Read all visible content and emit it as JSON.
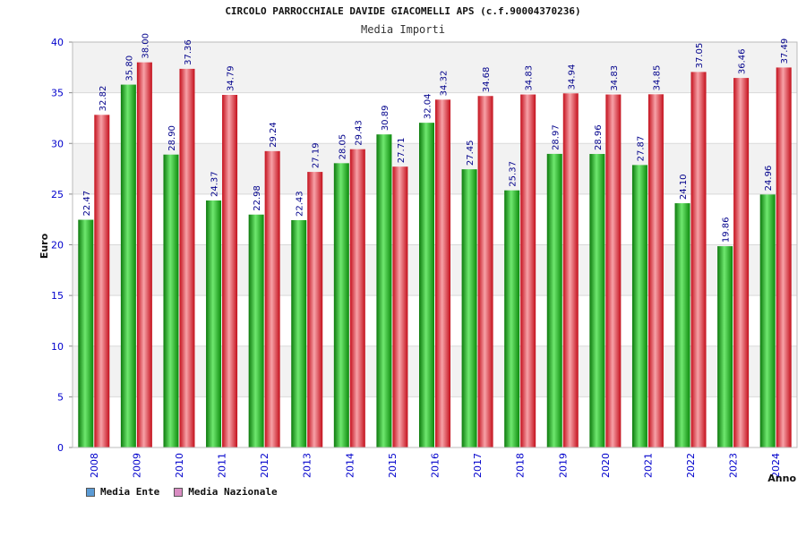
{
  "colors": {
    "ente_legend": "#5b9bd5",
    "nazionale_legend": "#d98cc2",
    "ente_bar": "#1db31d",
    "nazionale_bar": "#e8323c",
    "value_label": "#00008b",
    "tick_label": "#0000cc",
    "grid": "#d9d9d9",
    "band": "#f2f2f2"
  },
  "legend": {
    "ente": "Media Ente",
    "nazionale": "Media Nazionale"
  },
  "chart_data": {
    "type": "bar",
    "title": "CIRCOLO PARROCCHIALE DAVIDE GIACOMELLI APS (c.f.90004370236)",
    "subtitle": "Media Importi",
    "xlabel": "Anno",
    "ylabel": "Euro",
    "ylim": [
      0,
      40
    ],
    "yticks": [
      0,
      5,
      10,
      15,
      20,
      25,
      30,
      35,
      40
    ],
    "categories": [
      "2008",
      "2009",
      "2010",
      "2011",
      "2012",
      "2013",
      "2014",
      "2015",
      "2016",
      "2017",
      "2018",
      "2019",
      "2020",
      "2021",
      "2022",
      "2023",
      "2024"
    ],
    "series": [
      {
        "name": "Media Ente",
        "values": [
          22.47,
          35.8,
          28.9,
          24.37,
          22.98,
          22.43,
          28.05,
          30.89,
          32.04,
          27.45,
          25.37,
          28.97,
          28.96,
          27.87,
          24.1,
          19.86,
          24.96
        ],
        "labels": [
          "22.47",
          "35.80",
          "28.90",
          "24.37",
          "22.98",
          "22.43",
          "28.05",
          "30.89",
          "32.04",
          "27.45",
          "25.37",
          "28.97",
          "28.96",
          "27.87",
          "24.10",
          "19.86",
          "24.96"
        ]
      },
      {
        "name": "Media Nazionale",
        "values": [
          32.82,
          38.0,
          37.36,
          34.79,
          29.24,
          27.19,
          29.43,
          27.71,
          34.32,
          34.68,
          34.83,
          34.94,
          34.83,
          34.85,
          37.05,
          36.46,
          37.49
        ],
        "labels": [
          "32.82",
          "38.00",
          "37.36",
          "34.79",
          "29.24",
          "27.19",
          "29.43",
          "27.71",
          "34.32",
          "34.68",
          "34.83",
          "34.94",
          "34.83",
          "34.85",
          "37.05",
          "36.46",
          "37.49"
        ]
      }
    ]
  }
}
